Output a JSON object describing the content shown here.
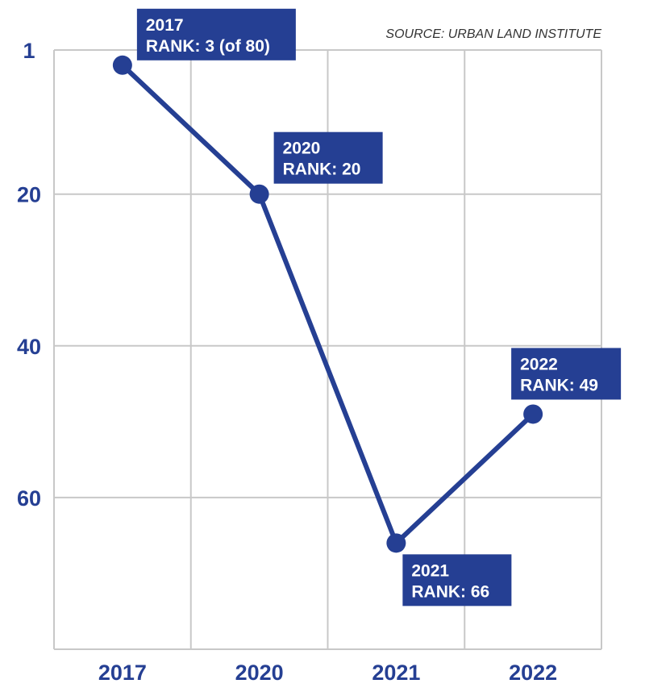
{
  "source": "SOURCE: URBAN LAND INSTITUTE",
  "colors": {
    "series": "#253f93",
    "axis_text": "#253f93",
    "grid": "#c8c8c8",
    "source_text": "#333333"
  },
  "chart_data": {
    "type": "line",
    "title": "",
    "xlabel": "",
    "ylabel": "",
    "categories": [
      "2017",
      "2020",
      "2021",
      "2022"
    ],
    "y_reversed": true,
    "ylim": [
      1,
      80
    ],
    "yticks": [
      1,
      20,
      40,
      60
    ],
    "ytick_labels": [
      "1",
      "20",
      "40",
      "60"
    ],
    "grid": true,
    "series": [
      {
        "values": [
          3,
          20,
          66,
          49
        ],
        "point_labels": [
          [
            "2017",
            "RANK: 3 (of 80)"
          ],
          [
            "2020",
            "RANK: 20"
          ],
          [
            "2021",
            "RANK: 66"
          ],
          [
            "2022",
            "RANK: 49"
          ]
        ]
      }
    ]
  }
}
